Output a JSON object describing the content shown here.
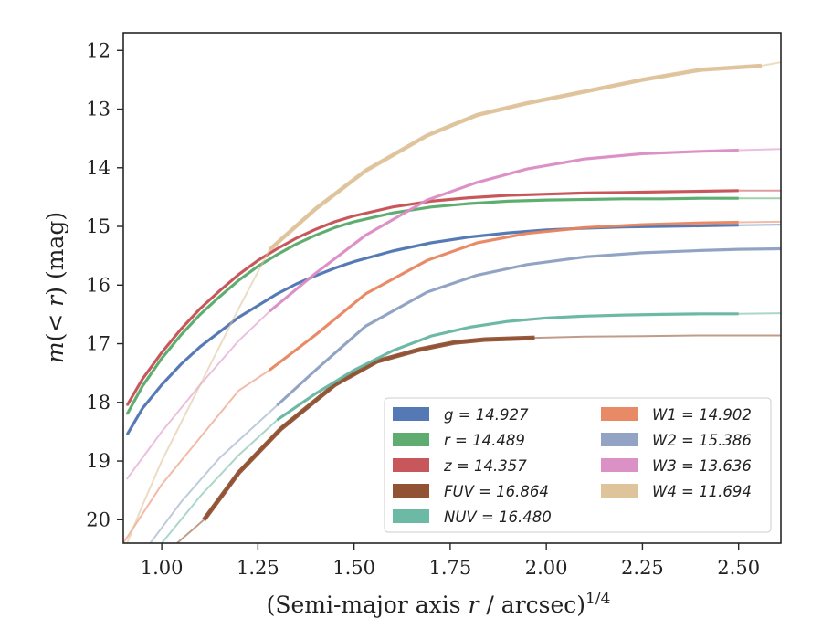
{
  "chart_data": {
    "type": "line",
    "xlabel_main": "(Semi-major axis ",
    "xlabel_var": "r",
    "xlabel_rest": " / arcsec)",
    "xlabel_exp": "1/4",
    "ylabel_main": "m",
    "ylabel_open": "(< ",
    "ylabel_var": "r",
    "ylabel_close": ") (mag)",
    "xlim": [
      0.9,
      2.61
    ],
    "ylim": [
      20.4,
      11.7
    ],
    "y_inverted": true,
    "grid": false,
    "legend_position": "lower-right",
    "x_ticks": [
      "1.00",
      "1.25",
      "1.50",
      "1.75",
      "2.00",
      "2.25",
      "2.50"
    ],
    "y_ticks": [
      "12",
      "13",
      "14",
      "15",
      "16",
      "17",
      "18",
      "19",
      "20"
    ],
    "series": [
      {
        "name": "g",
        "legend": "g = 14.927",
        "color": "#4c72b0",
        "x": [
          0.91,
          0.95,
          1.0,
          1.05,
          1.1,
          1.15,
          1.2,
          1.25,
          1.3,
          1.35,
          1.4,
          1.45,
          1.5,
          1.6,
          1.7,
          1.8,
          1.9,
          2.0,
          2.1,
          2.2,
          2.3,
          2.4,
          2.5,
          2.61
        ],
        "y": [
          18.55,
          18.1,
          17.7,
          17.35,
          17.05,
          16.8,
          16.55,
          16.35,
          16.15,
          15.98,
          15.84,
          15.71,
          15.6,
          15.42,
          15.28,
          15.18,
          15.11,
          15.06,
          15.03,
          15.01,
          15.0,
          14.99,
          14.98,
          14.97
        ],
        "bold_until": 2.56
      },
      {
        "name": "r",
        "legend": "r = 14.489",
        "color": "#55a868",
        "x": [
          0.91,
          0.95,
          1.0,
          1.05,
          1.1,
          1.15,
          1.2,
          1.25,
          1.3,
          1.35,
          1.4,
          1.45,
          1.5,
          1.6,
          1.7,
          1.8,
          1.9,
          2.0,
          2.1,
          2.2,
          2.3,
          2.4,
          2.5,
          2.61
        ],
        "y": [
          18.2,
          17.72,
          17.25,
          16.85,
          16.5,
          16.2,
          15.92,
          15.68,
          15.48,
          15.3,
          15.15,
          15.02,
          14.92,
          14.77,
          14.67,
          14.61,
          14.57,
          14.55,
          14.54,
          14.53,
          14.53,
          14.52,
          14.52,
          14.52
        ],
        "bold_until": 2.5
      },
      {
        "name": "z",
        "legend": "z = 14.357",
        "color": "#c44e52",
        "x": [
          0.91,
          0.95,
          1.0,
          1.05,
          1.1,
          1.15,
          1.2,
          1.25,
          1.3,
          1.35,
          1.4,
          1.45,
          1.5,
          1.6,
          1.7,
          1.8,
          1.9,
          2.0,
          2.1,
          2.2,
          2.3,
          2.4,
          2.5,
          2.61
        ],
        "y": [
          18.05,
          17.6,
          17.15,
          16.75,
          16.4,
          16.1,
          15.82,
          15.58,
          15.38,
          15.2,
          15.05,
          14.92,
          14.82,
          14.67,
          14.57,
          14.51,
          14.47,
          14.45,
          14.43,
          14.42,
          14.41,
          14.4,
          14.39,
          14.39
        ],
        "bold_until": 2.56
      },
      {
        "name": "FUV",
        "legend": "FUV = 16.864",
        "color": "#8c4a2a",
        "x": [
          1.04,
          1.11,
          1.2,
          1.31,
          1.45,
          1.56,
          1.67,
          1.76,
          1.84,
          1.97,
          2.1,
          2.25,
          2.4,
          2.5,
          2.61
        ],
        "y": [
          20.4,
          20.0,
          19.2,
          18.45,
          17.7,
          17.3,
          17.1,
          16.98,
          16.93,
          16.9,
          16.88,
          16.87,
          16.86,
          16.86,
          16.86
        ],
        "bold_from": 1.11,
        "bold_until": 1.97
      },
      {
        "name": "NUV",
        "legend": "NUV = 16.480",
        "color": "#64b5a0",
        "x": [
          1.0,
          1.1,
          1.2,
          1.3,
          1.4,
          1.5,
          1.6,
          1.7,
          1.8,
          1.9,
          2.0,
          2.1,
          2.2,
          2.3,
          2.4,
          2.5,
          2.61
        ],
        "y": [
          20.4,
          19.6,
          18.9,
          18.3,
          17.85,
          17.45,
          17.12,
          16.87,
          16.72,
          16.62,
          16.56,
          16.53,
          16.51,
          16.5,
          16.49,
          16.49,
          16.48
        ],
        "bold_from": 1.3,
        "bold_until": 2.56
      },
      {
        "name": "W1",
        "legend": "W1 = 14.902",
        "color": "#e8845e",
        "x": [
          0.9,
          1.0,
          1.1,
          1.2,
          1.28,
          1.4,
          1.53,
          1.69,
          1.82,
          1.95,
          2.1,
          2.25,
          2.4,
          2.5,
          2.61
        ],
        "y": [
          20.4,
          19.4,
          18.6,
          17.8,
          17.45,
          16.85,
          16.15,
          15.58,
          15.28,
          15.12,
          15.02,
          14.97,
          14.94,
          14.93,
          14.92
        ],
        "bold_from": 1.28,
        "bold_until": 2.5
      },
      {
        "name": "W2",
        "legend": "W2 = 15.386",
        "color": "#8c9ec0",
        "x": [
          0.97,
          1.05,
          1.15,
          1.3,
          1.4,
          1.53,
          1.69,
          1.82,
          1.95,
          2.1,
          2.25,
          2.4,
          2.5,
          2.61
        ],
        "y": [
          20.4,
          19.7,
          18.95,
          18.05,
          17.45,
          16.7,
          16.12,
          15.83,
          15.65,
          15.52,
          15.45,
          15.41,
          15.39,
          15.38
        ],
        "bold_from": 1.3,
        "bold_until": 2.61
      },
      {
        "name": "W3",
        "legend": "W3 = 13.636",
        "color": "#da8bc3",
        "x": [
          0.91,
          1.0,
          1.1,
          1.2,
          1.28,
          1.4,
          1.53,
          1.69,
          1.82,
          1.95,
          2.1,
          2.25,
          2.4,
          2.5,
          2.61
        ],
        "y": [
          19.3,
          18.5,
          17.7,
          16.95,
          16.45,
          15.8,
          15.15,
          14.55,
          14.25,
          14.02,
          13.85,
          13.76,
          13.72,
          13.7,
          13.68
        ],
        "bold_from": 1.28,
        "bold_until": 2.5
      },
      {
        "name": "W4",
        "legend": "W4 = 11.694",
        "color": "#ddc096",
        "x": [
          0.91,
          0.95,
          1.0,
          1.1,
          1.2,
          1.28,
          1.4,
          1.53,
          1.69,
          1.82,
          1.95,
          2.1,
          2.25,
          2.4,
          2.56,
          2.61
        ],
        "y": [
          20.4,
          19.75,
          19.0,
          17.7,
          16.4,
          15.4,
          14.7,
          14.05,
          13.45,
          13.1,
          12.9,
          12.7,
          12.5,
          12.33,
          12.26,
          12.2
        ],
        "bold_from": 1.28,
        "bold_until": 2.56
      }
    ]
  }
}
